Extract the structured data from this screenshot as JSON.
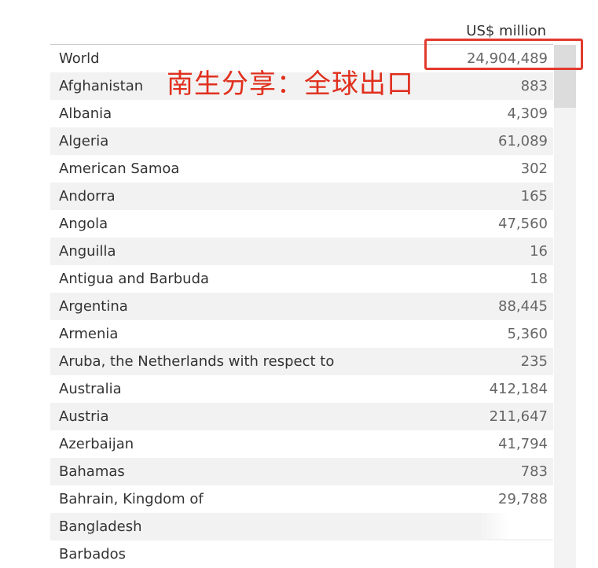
{
  "table": {
    "unit_header": "US$ million",
    "rows": [
      {
        "country": "World",
        "value": "24,904,489"
      },
      {
        "country": "Afghanistan",
        "value": "883"
      },
      {
        "country": "Albania",
        "value": "4,309"
      },
      {
        "country": "Algeria",
        "value": "61,089"
      },
      {
        "country": "American Samoa",
        "value": "302"
      },
      {
        "country": "Andorra",
        "value": "165"
      },
      {
        "country": "Angola",
        "value": "47,560"
      },
      {
        "country": "Anguilla",
        "value": "16"
      },
      {
        "country": "Antigua and Barbuda",
        "value": "18"
      },
      {
        "country": "Argentina",
        "value": "88,445"
      },
      {
        "country": "Armenia",
        "value": "5,360"
      },
      {
        "country": "Aruba, the Netherlands with respect to",
        "value": "235"
      },
      {
        "country": "Australia",
        "value": "412,184"
      },
      {
        "country": "Austria",
        "value": "211,647"
      },
      {
        "country": "Azerbaijan",
        "value": "41,794"
      },
      {
        "country": "Bahamas",
        "value": "783"
      },
      {
        "country": "Bahrain, Kingdom of",
        "value": "29,788"
      },
      {
        "country": "Bangladesh",
        "value": ""
      },
      {
        "country": "Barbados",
        "value": ""
      }
    ]
  },
  "annotation": {
    "watermark_text": "南生分享：全球出口",
    "color": "#e0301e",
    "highlight_color": "#e23a2e"
  }
}
